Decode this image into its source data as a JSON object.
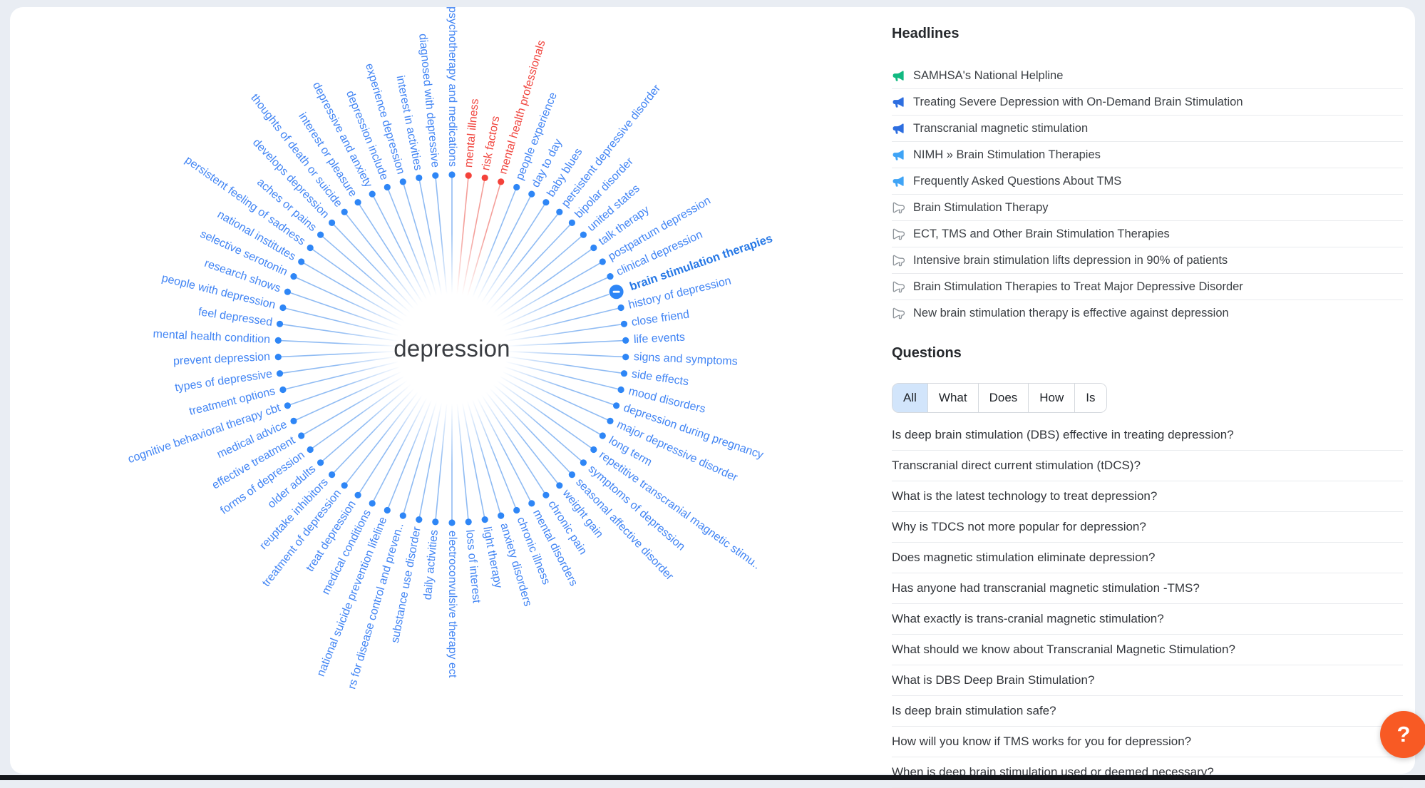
{
  "wheel": {
    "center_label": "depression",
    "items": [
      {
        "label": "psychotherapy and medications",
        "color": "blue"
      },
      {
        "label": "mental illness",
        "color": "red"
      },
      {
        "label": "risk factors",
        "color": "red"
      },
      {
        "label": "mental health professionals",
        "color": "red"
      },
      {
        "label": "people experience",
        "color": "blue"
      },
      {
        "label": "day to day",
        "color": "blue"
      },
      {
        "label": "baby blues",
        "color": "blue"
      },
      {
        "label": "persistent depressive disorder",
        "color": "blue"
      },
      {
        "label": "bipolar disorder",
        "color": "blue"
      },
      {
        "label": "united states",
        "color": "blue"
      },
      {
        "label": "talk therapy",
        "color": "blue"
      },
      {
        "label": "postpartum depression",
        "color": "blue"
      },
      {
        "label": "clinical depression",
        "color": "blue"
      },
      {
        "label": "brain stimulation therapies",
        "color": "blue",
        "selected": true
      },
      {
        "label": "history of depression",
        "color": "blue"
      },
      {
        "label": "close friend",
        "color": "blue"
      },
      {
        "label": "life events",
        "color": "blue"
      },
      {
        "label": "signs and symptoms",
        "color": "blue"
      },
      {
        "label": "side effects",
        "color": "blue"
      },
      {
        "label": "mood disorders",
        "color": "blue"
      },
      {
        "label": "depression during pregnancy",
        "color": "blue"
      },
      {
        "label": "major depressive disorder",
        "color": "blue"
      },
      {
        "label": "long term",
        "color": "blue"
      },
      {
        "label": "repetitive transcranial magnetic stimu..",
        "color": "blue"
      },
      {
        "label": "symptoms of depression",
        "color": "blue"
      },
      {
        "label": "seasonal affective disorder",
        "color": "blue"
      },
      {
        "label": "weight gain",
        "color": "blue"
      },
      {
        "label": "chronic pain",
        "color": "blue"
      },
      {
        "label": "mental disorders",
        "color": "blue"
      },
      {
        "label": "chronic illness",
        "color": "blue"
      },
      {
        "label": "anxiety disorders",
        "color": "blue"
      },
      {
        "label": "light therapy",
        "color": "blue"
      },
      {
        "label": "loss of interest",
        "color": "blue"
      },
      {
        "label": "electroconvulsive therapy ect",
        "color": "blue"
      },
      {
        "label": "daily activities",
        "color": "blue"
      },
      {
        "label": "substance use disorder",
        "color": "blue"
      },
      {
        "label": "rs for disease control and preven..",
        "color": "blue"
      },
      {
        "label": "national suicide prevention lifeline",
        "color": "blue"
      },
      {
        "label": "medical conditions",
        "color": "blue"
      },
      {
        "label": "treat depression",
        "color": "blue"
      },
      {
        "label": "treatment of depression",
        "color": "blue"
      },
      {
        "label": "reuptake inhibitors",
        "color": "blue"
      },
      {
        "label": "older adults",
        "color": "blue"
      },
      {
        "label": "forms of depression",
        "color": "blue"
      },
      {
        "label": "effective treatment",
        "color": "blue"
      },
      {
        "label": "medical advice",
        "color": "blue"
      },
      {
        "label": "cognitive behavioral therapy cbt",
        "color": "blue"
      },
      {
        "label": "treatment options",
        "color": "blue"
      },
      {
        "label": "types of depressive",
        "color": "blue"
      },
      {
        "label": "prevent depression",
        "color": "blue"
      },
      {
        "label": "mental health condition",
        "color": "blue"
      },
      {
        "label": "feel depressed",
        "color": "blue"
      },
      {
        "label": "people with depression",
        "color": "blue"
      },
      {
        "label": "research shows",
        "color": "blue"
      },
      {
        "label": "selective serotonin",
        "color": "blue"
      },
      {
        "label": "national institutes",
        "color": "blue"
      },
      {
        "label": "persistent feeling of sadness",
        "color": "blue"
      },
      {
        "label": "aches or pains",
        "color": "blue"
      },
      {
        "label": "develops depression",
        "color": "blue"
      },
      {
        "label": "thoughts of death or suicide",
        "color": "blue"
      },
      {
        "label": "interest or pleasure",
        "color": "blue"
      },
      {
        "label": "depressive and anxiety",
        "color": "blue"
      },
      {
        "label": "depression include",
        "color": "blue"
      },
      {
        "label": "experience depression",
        "color": "blue"
      },
      {
        "label": "interest in activities",
        "color": "blue"
      },
      {
        "label": "diagnosed with depressive",
        "color": "blue"
      }
    ]
  },
  "headlines": {
    "title": "Headlines",
    "items": [
      {
        "text": "SAMHSA's National Helpline",
        "icon": "green"
      },
      {
        "text": "Treating Severe Depression with On-Demand Brain Stimulation",
        "icon": "blue"
      },
      {
        "text": "Transcranial magnetic stimulation",
        "icon": "blue"
      },
      {
        "text": "NIMH » Brain Stimulation Therapies",
        "icon": "lightblue"
      },
      {
        "text": "Frequently Asked Questions About TMS",
        "icon": "lightblue"
      },
      {
        "text": "Brain Stimulation Therapy",
        "icon": "gray"
      },
      {
        "text": "ECT, TMS and Other Brain Stimulation Therapies",
        "icon": "gray"
      },
      {
        "text": "Intensive brain stimulation lifts depression in 90% of patients",
        "icon": "gray"
      },
      {
        "text": "Brain Stimulation Therapies to Treat Major Depressive Disorder",
        "icon": "gray"
      },
      {
        "text": "New brain stimulation therapy is effective against depression",
        "icon": "gray"
      }
    ]
  },
  "questions": {
    "title": "Questions",
    "filters": [
      {
        "label": "All",
        "selected": true
      },
      {
        "label": "What",
        "selected": false
      },
      {
        "label": "Does",
        "selected": false
      },
      {
        "label": "How",
        "selected": false
      },
      {
        "label": "Is",
        "selected": false
      }
    ],
    "items": [
      "Is deep brain stimulation (DBS) effective in treating depression?",
      "Transcranial direct current stimulation (tDCS)?",
      "What is the latest technology to treat depression?",
      "Why is TDCS not more popular for depression?",
      "Does magnetic stimulation eliminate depression?",
      "Has anyone had transcranial magnetic stimulation -TMS?",
      "What exactly is trans-cranial magnetic stimulation?",
      "What should we know about Transcranial Magnetic Stimulation?",
      "What is DBS Deep Brain Stimulation?",
      "Is deep brain stimulation safe?",
      "How will you know if TMS works for you for depression?",
      "When is deep brain stimulation used or deemed necessary?"
    ]
  },
  "help_button": {
    "label": "?",
    "color": "#f85a24"
  },
  "colors": {
    "label_blue": "#4285f4",
    "label_red": "#f0453e",
    "line_blue": "#8fbbf3",
    "line_red": "#f49f9a",
    "dot_blue": "#2e86f6",
    "dot_red": "#f4423a",
    "icon_green": "#12b981",
    "icon_blue": "#2d6ee0",
    "icon_lightblue": "#3fa4f6",
    "icon_gray": "#8f959b"
  }
}
